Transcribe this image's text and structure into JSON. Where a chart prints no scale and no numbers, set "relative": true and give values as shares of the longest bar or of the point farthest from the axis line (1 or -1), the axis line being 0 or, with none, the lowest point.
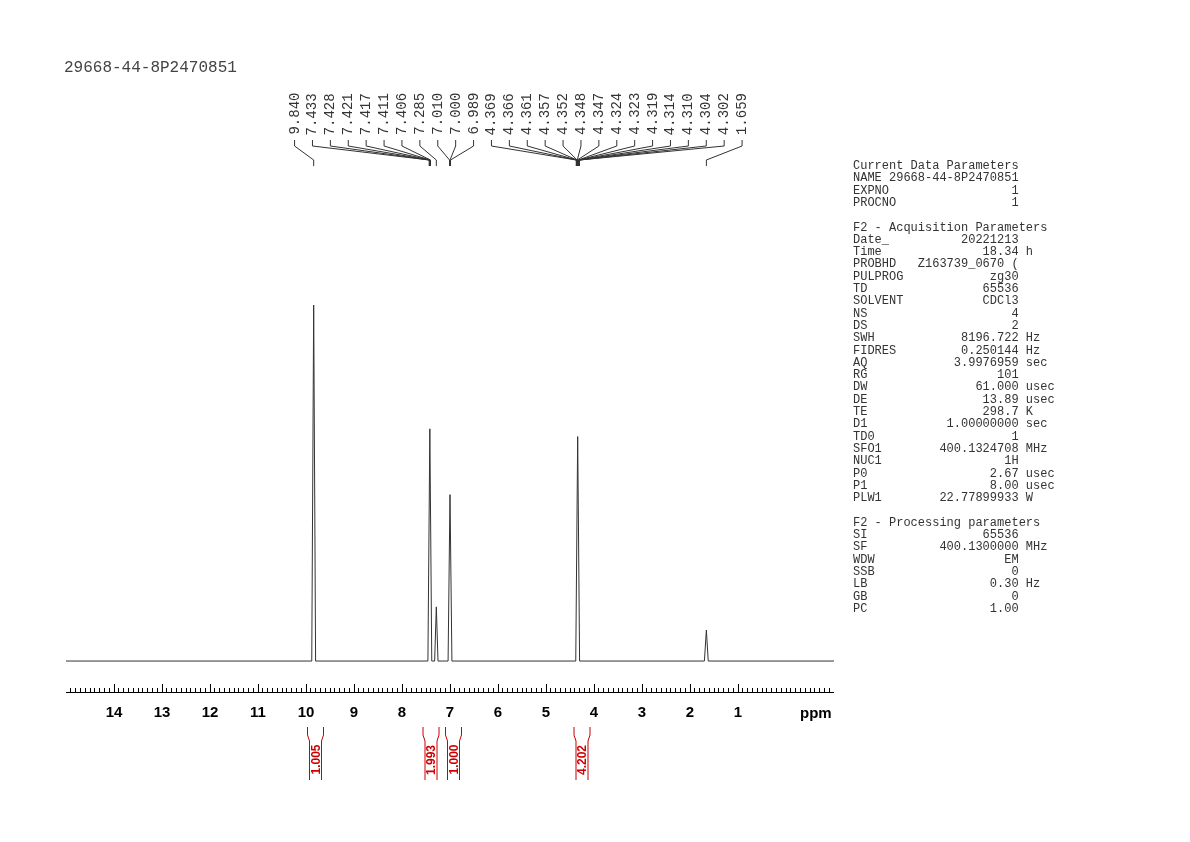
{
  "chart_data": [
    {
      "type": "line",
      "title": "29668-44-8P2470851",
      "xlabel": "ppm",
      "relative": true,
      "x": [
        15.0,
        9.88,
        9.84,
        9.8,
        7.46,
        7.42,
        7.38,
        7.32,
        7.285,
        7.25,
        7.04,
        7.0,
        6.96,
        4.38,
        4.34,
        4.3,
        1.7,
        1.659,
        1.62,
        -1.0
      ],
      "series": [
        {
          "color": "#333333",
          "values": [
            0.08,
            0.08,
            1.0,
            0.08,
            0.08,
            0.68,
            0.08,
            0.08,
            0.22,
            0.08,
            0.08,
            0.51,
            0.08,
            0.08,
            0.66,
            0.08,
            0.08,
            0.16,
            0.08,
            0.08
          ]
        }
      ],
      "xlim": [
        15.0,
        -1.0
      ],
      "xticks": [
        14,
        13,
        12,
        11,
        10,
        9,
        8,
        7,
        6,
        5,
        4,
        3,
        2,
        1
      ],
      "annotations": [
        {
          "text": "9.840",
          "x": 9.84
        },
        {
          "text": "7.433",
          "x": 7.433
        },
        {
          "text": "7.428",
          "x": 7.428
        },
        {
          "text": "7.421",
          "x": 7.421
        },
        {
          "text": "7.417",
          "x": 7.417
        },
        {
          "text": "7.411",
          "x": 7.411
        },
        {
          "text": "7.406",
          "x": 7.406
        },
        {
          "text": "7.285",
          "x": 7.285
        },
        {
          "text": "7.010",
          "x": 7.01
        },
        {
          "text": "7.000",
          "x": 7.0
        },
        {
          "text": "6.989",
          "x": 6.989
        },
        {
          "text": "4.369",
          "x": 4.369
        },
        {
          "text": "4.366",
          "x": 4.366
        },
        {
          "text": "4.361",
          "x": 4.361
        },
        {
          "text": "4.357",
          "x": 4.357
        },
        {
          "text": "4.352",
          "x": 4.352
        },
        {
          "text": "4.348",
          "x": 4.348
        },
        {
          "text": "4.347",
          "x": 4.347
        },
        {
          "text": "4.324",
          "x": 4.324
        },
        {
          "text": "4.323",
          "x": 4.323
        },
        {
          "text": "4.319",
          "x": 4.319
        },
        {
          "text": "4.314",
          "x": 4.314
        },
        {
          "text": "4.310",
          "x": 4.31
        },
        {
          "text": "4.304",
          "x": 4.304
        },
        {
          "text": "4.302",
          "x": 4.302
        },
        {
          "text": "1.659",
          "x": 1.659
        },
        "1.005",
        "1.993",
        "1.000",
        "4.202"
      ]
    },
    {
      "type": "other",
      "title": "Current Data Parameters",
      "annotations": [
        "NAME 29668-44-8P2470851",
        "EXPNO 1",
        "PROCNO 1"
      ]
    },
    {
      "type": "other",
      "title": "F2 - Acquisition Parameters",
      "annotations": [
        "Date_ 20221213",
        "Time 18.34 h",
        "PROBHD Z163739_0670 (",
        "PULPROG zg30",
        "TD 65536",
        "SOLVENT CDCl3",
        "NS 4",
        "DS 2",
        "SWH 8196.722 Hz",
        "FIDRES 0.250144 Hz",
        "AQ 3.9976959 sec",
        "RG 101",
        "DW 61.000 usec",
        "DE 13.89 usec",
        "TE 298.7 K",
        "D1 1.00000000 sec",
        "TD0 1",
        "SFO1 400.1324708 MHz",
        "NUC1 1H",
        "P0 2.67 usec",
        "P1 8.00 usec",
        "PLW1 22.77899933 W"
      ]
    },
    {
      "type": "other",
      "title": "F2 - Processing parameters",
      "annotations": [
        "SI 65536",
        "SF 400.1300000 MHz",
        "WDW EM",
        "SSB 0",
        "LB 0.30 Hz",
        "GB 0",
        "PC 1.00"
      ]
    }
  ]
}
